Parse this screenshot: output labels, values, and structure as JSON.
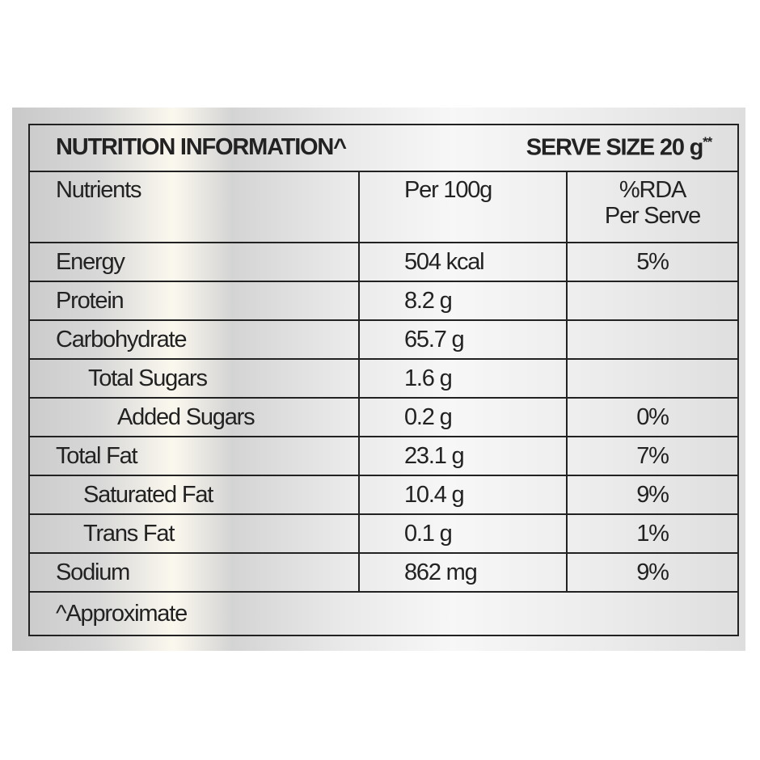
{
  "header": {
    "title": "NUTRITION INFORMATION^",
    "serve_size": "SERVE SIZE 20 g",
    "serve_size_mark": "**"
  },
  "table": {
    "columns": [
      "Nutrients",
      "Per 100g",
      [
        "%RDA",
        "Per Serve"
      ]
    ],
    "rows": [
      [
        "Energy",
        "504 kcal",
        "5%"
      ],
      [
        "Protein",
        "8.2 g",
        null
      ],
      [
        "Carbohydrate",
        "65.7 g",
        null
      ],
      [
        "Total Sugars",
        "1.6 g",
        null
      ],
      [
        "Added Sugars",
        "0.2 g",
        "0%"
      ],
      [
        "Total Fat",
        "23.1 g",
        "7%"
      ],
      [
        "Saturated Fat",
        "10.4 g",
        "9%"
      ],
      [
        "Trans Fat",
        "0.1 g",
        "1%"
      ],
      [
        "Sodium",
        "862 mg",
        "9%"
      ]
    ]
  },
  "footer": {
    "note": "^Approximate"
  }
}
